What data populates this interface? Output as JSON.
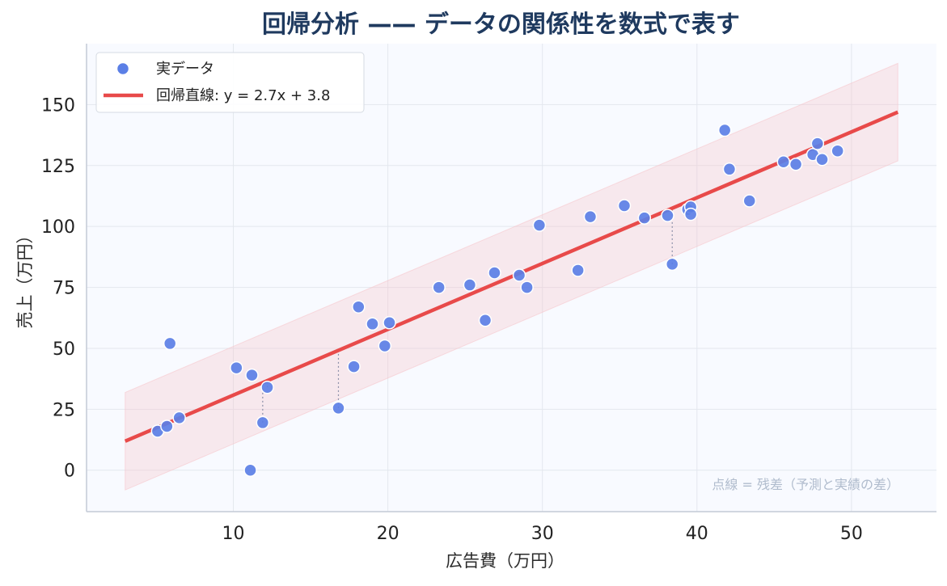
{
  "chart_data": {
    "type": "scatter",
    "title": "回帰分析 —— データの関係性を数式で表す",
    "xlabel": "広告費（万円）",
    "ylabel": "売上（万円）",
    "xlim": [
      0.5,
      55.5
    ],
    "ylim": [
      -17,
      175
    ],
    "x_ticks": [
      10,
      20,
      30,
      40,
      50
    ],
    "y_ticks": [
      0,
      25,
      50,
      75,
      100,
      125,
      150
    ],
    "grid": true,
    "legend_position": "top-left",
    "annotation": "点線 = 残差（予測と実績の差）",
    "colors": {
      "points": "#5b7fe6",
      "line": "#e84a4a",
      "band": "#f7c6cb",
      "title": "#1f3a5f",
      "plot_bg": "#f8faff",
      "annotation": "#b0bccd"
    },
    "regression": {
      "slope": 2.7,
      "intercept": 3.8,
      "x_range": [
        3,
        53
      ],
      "band_halfwidth": 20
    },
    "series": [
      {
        "name": "実データ",
        "kind": "scatter",
        "points": [
          [
            5.1,
            16
          ],
          [
            5.7,
            18
          ],
          [
            5.9,
            52
          ],
          [
            6.5,
            21.5
          ],
          [
            10.2,
            42
          ],
          [
            11.1,
            0
          ],
          [
            11.2,
            39
          ],
          [
            11.9,
            19.5
          ],
          [
            12.2,
            34
          ],
          [
            16.8,
            25.5
          ],
          [
            17.8,
            42.5
          ],
          [
            18.1,
            67
          ],
          [
            19,
            60
          ],
          [
            19.8,
            51
          ],
          [
            20.1,
            60.5
          ],
          [
            23.3,
            75
          ],
          [
            25.3,
            76
          ],
          [
            26.3,
            61.5
          ],
          [
            26.9,
            81
          ],
          [
            28.5,
            80
          ],
          [
            29,
            75
          ],
          [
            29.8,
            100.5
          ],
          [
            32.3,
            82
          ],
          [
            33.1,
            104
          ],
          [
            35.3,
            108.5
          ],
          [
            36.6,
            103.5
          ],
          [
            38.1,
            104.5
          ],
          [
            38.4,
            84.5
          ],
          [
            39.4,
            107
          ],
          [
            39.6,
            108
          ],
          [
            39.6,
            105
          ],
          [
            41.8,
            139.5
          ],
          [
            42.1,
            123.5
          ],
          [
            43.4,
            110.5
          ],
          [
            45.6,
            126.5
          ],
          [
            46.4,
            125.5
          ],
          [
            47.5,
            129.5
          ],
          [
            47.8,
            134
          ],
          [
            48.1,
            127.5
          ],
          [
            49.1,
            131
          ]
        ]
      },
      {
        "name": "回帰直線: y = 2.7x + 3.8",
        "kind": "line"
      }
    ],
    "residual_points": [
      [
        11.9,
        19.5
      ],
      [
        12.2,
        34
      ],
      [
        16.8,
        25.5
      ],
      [
        28.5,
        80
      ],
      [
        38.4,
        84.5
      ]
    ]
  }
}
